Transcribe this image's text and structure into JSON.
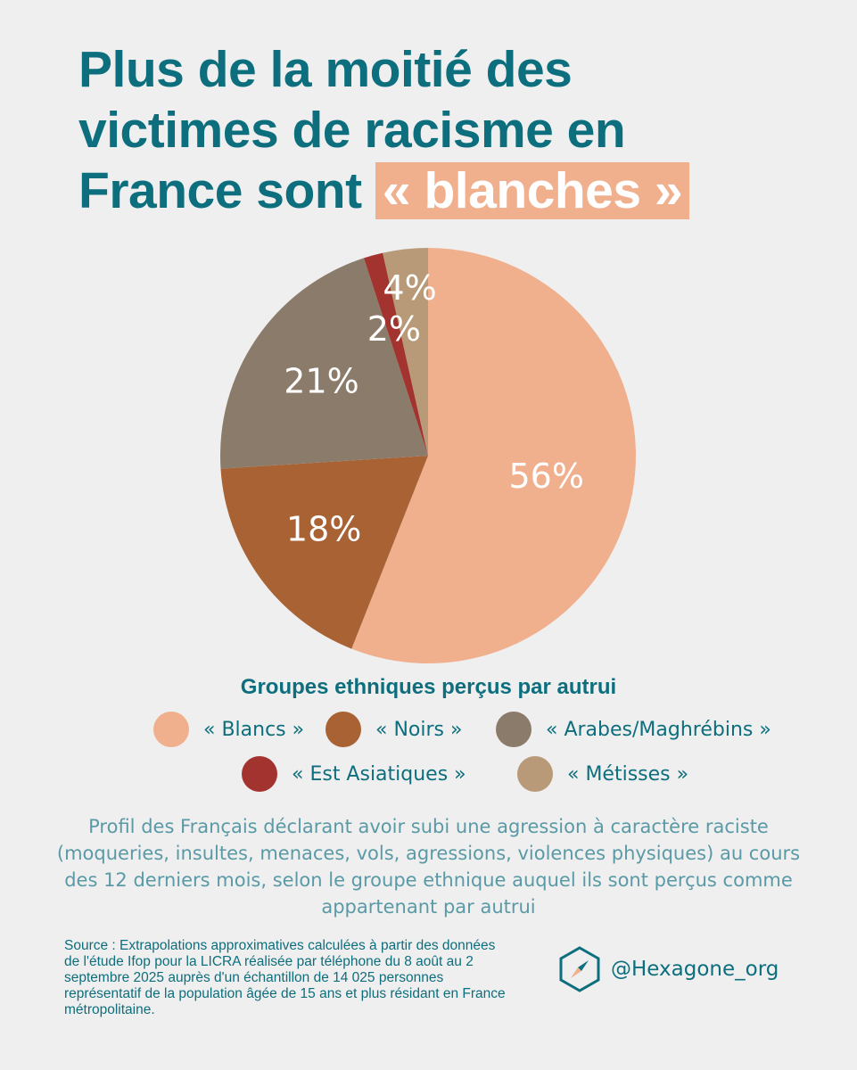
{
  "title": {
    "line1": "Plus de la moitié des",
    "line2": "victimes de racisme en",
    "line3_prefix": "France sont ",
    "line3_highlight": "« blanches »"
  },
  "colors": {
    "accent": "#0d6e7d",
    "highlight": "#f0b08e",
    "background": "#efefef"
  },
  "chart_data": {
    "type": "pie",
    "slices": [
      {
        "key": "blancs",
        "label": "56%",
        "value": 56,
        "color": "#f0b08e"
      },
      {
        "key": "noirs",
        "label": "18%",
        "value": 18,
        "color": "#a86234"
      },
      {
        "key": "arabes",
        "label": "21%",
        "value": 21,
        "color": "#8b7b6b"
      },
      {
        "key": "asiatiques",
        "label": "2%",
        "value": 1.5,
        "color": "#a3332f"
      },
      {
        "key": "metisses",
        "label": "4%",
        "value": 3.5,
        "color": "#b89a78"
      }
    ],
    "legend_title": "Groupes ethniques perçus par autrui",
    "legend": [
      {
        "label": "« Blancs »",
        "color": "#f0b08e"
      },
      {
        "label": "« Noirs »",
        "color": "#a86234"
      },
      {
        "label": "« Arabes/Maghrébins »",
        "color": "#8b7b6b"
      },
      {
        "label": "« Est Asiatiques »",
        "color": "#a3332f"
      },
      {
        "label": "« Métisses »",
        "color": "#b89a78"
      }
    ]
  },
  "description": "Profil des Français déclarant avoir subi une agression à caractère raciste (moqueries, insultes, menaces, vols, agressions, violences physiques) au cours des 12 derniers mois, selon le groupe ethnique auquel ils sont perçus comme appartenant par autrui",
  "source": "Source : Extrapolations approximatives calculées à partir des données de l'étude Ifop pour la LICRA réalisée par téléphone du 8 août au 2 septembre 2025 auprès d'un échantillon de 14 025 personnes représentatif de la population âgée de 15 ans et plus résidant en France métropolitaine.",
  "brand": {
    "handle": "@Hexagone_org",
    "icon": "compass-hexagon-icon"
  }
}
